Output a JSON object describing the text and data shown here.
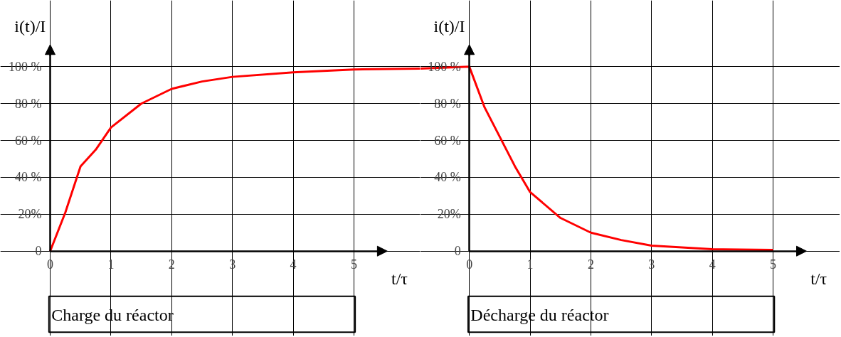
{
  "chart_data": [
    {
      "type": "line",
      "title": "Charge du réactor",
      "xlabel": "t/τ",
      "ylabel": "i(t)/I",
      "xlim": [
        -0.82,
        6.09
      ],
      "ylim": [
        -46,
        136
      ],
      "xticks": [
        0,
        1,
        2,
        3,
        4,
        5
      ],
      "yticks": [
        {
          "value": 0,
          "label": "0"
        },
        {
          "value": 20,
          "label": "20%"
        },
        {
          "value": 40,
          "label": "40 %"
        },
        {
          "value": 60,
          "label": "60 %"
        },
        {
          "value": 80,
          "label": "80 %"
        },
        {
          "value": 100,
          "label": "100 %"
        }
      ],
      "grid": true,
      "series": [
        {
          "color": "#ff0000",
          "x": [
            0,
            0.25,
            0.5,
            0.75,
            1,
            1.5,
            2,
            2.5,
            3,
            4,
            5,
            6.09
          ],
          "values": [
            0,
            21,
            46,
            55,
            67,
            80,
            88,
            92,
            94.5,
            97,
            98.5,
            99
          ]
        }
      ]
    },
    {
      "type": "line",
      "title": "Décharge du réactor",
      "xlabel": "t/τ",
      "ylabel": "i(t)/I",
      "xlim": [
        -0.81,
        6.1
      ],
      "ylim": [
        -46,
        136
      ],
      "xticks": [
        0,
        1,
        2,
        3,
        4,
        5
      ],
      "yticks": [
        {
          "value": 0,
          "label": "0"
        },
        {
          "value": 20,
          "label": "20%"
        },
        {
          "value": 40,
          "label": "40 %"
        },
        {
          "value": 60,
          "label": "60 %"
        },
        {
          "value": 80,
          "label": "80 %"
        },
        {
          "value": 100,
          "label": "100 %"
        }
      ],
      "grid": true,
      "series": [
        {
          "color": "#ff0000",
          "x": [
            -0.81,
            0,
            0.25,
            0.5,
            0.75,
            1,
            1.5,
            2,
            2.5,
            3,
            4,
            5
          ],
          "values": [
            99,
            100,
            78,
            62,
            46,
            32,
            18,
            10,
            6,
            3,
            1,
            0.7
          ]
        }
      ]
    }
  ]
}
